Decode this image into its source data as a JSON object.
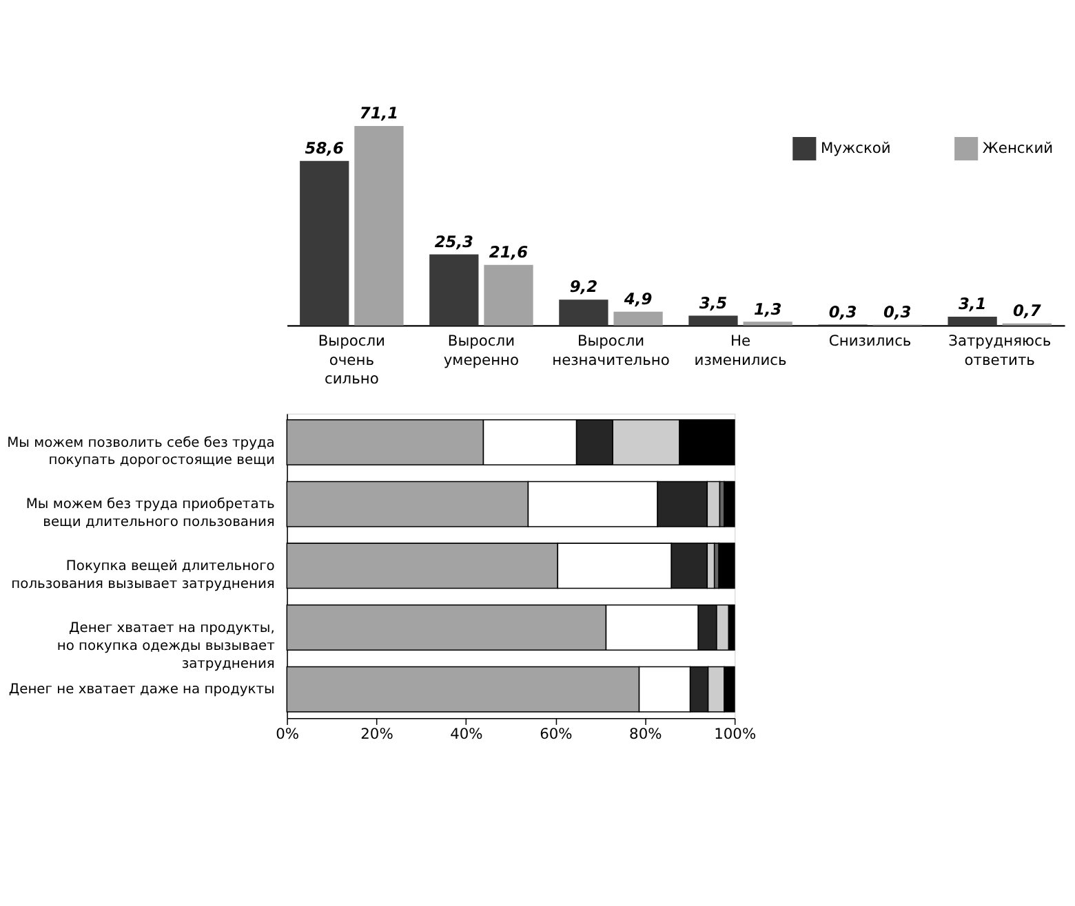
{
  "chart_data": [
    {
      "type": "bar",
      "categories": [
        "Выросли\nочень\nсильно",
        "Выросли\nумеренно",
        "Выросли\nнезначительно",
        "Не\nизменились",
        "Снизились",
        "Затрудняюсь\nответить"
      ],
      "series": [
        {
          "name": "Мужской",
          "color": "#3a3a3a",
          "values": [
            58.6,
            25.3,
            9.2,
            3.5,
            0.3,
            3.1
          ],
          "value_labels": [
            "58,6",
            "25,3",
            "9,2",
            "3,5",
            "0,3",
            "3,1"
          ]
        },
        {
          "name": "Женский",
          "color": "#a3a3a3",
          "values": [
            71.1,
            21.6,
            4.9,
            1.3,
            0.3,
            0.7
          ],
          "value_labels": [
            "71,1",
            "21,6",
            "4,9",
            "1,3",
            "0,3",
            "0,7"
          ]
        }
      ],
      "tick_labels": "x",
      "legend": "top right",
      "grid": false
    },
    {
      "type": "bar",
      "orientation": "horizontal",
      "stacked": true,
      "categories": [
        "Мы можем позволить себе без труда\nпокупать дорогостоящие вещи",
        "Мы можем без труда приобретать\nвещи длительного пользования",
        "Покупка вещей длительного\nпользования вызывает затруднения",
        "Денег хватает на продукты,\nно покупка одежды вызывает\nзатруднения",
        "Денег не хватает даже на продукты"
      ],
      "series": [
        {
          "color": "#a3a3a3",
          "values": [
            43.9,
            53.9,
            60.5,
            71.3,
            78.7
          ]
        },
        {
          "color": "#ffffff",
          "values": [
            20.8,
            28.9,
            25.4,
            20.6,
            11.4
          ]
        },
        {
          "color": "#262626",
          "values": [
            8.1,
            11.1,
            8.0,
            4.1,
            4.0
          ]
        },
        {
          "color": "#cccccc",
          "values": [
            14.9,
            2.8,
            1.6,
            2.7,
            3.6
          ]
        },
        {
          "color": "#666666",
          "values": [
            null,
            1.0,
            1.0,
            null,
            null
          ]
        },
        {
          "color": "#000000",
          "values": [
            12.3,
            2.3,
            3.5,
            1.3,
            2.3
          ]
        }
      ],
      "xlim": [
        0,
        100
      ],
      "xticks": [
        {
          "value": 0,
          "label": "0%"
        },
        {
          "value": 20,
          "label": "20%"
        },
        {
          "value": 40,
          "label": "40%"
        },
        {
          "value": 60,
          "label": "60%"
        },
        {
          "value": 80,
          "label": "80%"
        },
        {
          "value": 100,
          "label": "100%"
        }
      ],
      "grid": false
    }
  ]
}
